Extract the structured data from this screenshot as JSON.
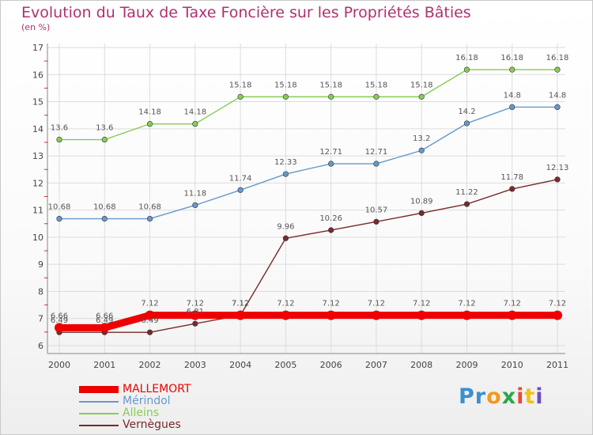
{
  "chart_data": {
    "type": "line",
    "title": "Evolution du Taux de Taxe Foncière sur les Propriétés Bâties",
    "unit": "(en %)",
    "xlabel": "",
    "ylabel": "",
    "categories": [
      "2000",
      "2001",
      "2002",
      "2003",
      "2004",
      "2005",
      "2006",
      "2007",
      "2008",
      "2009",
      "2010",
      "2011"
    ],
    "ylim": [
      6,
      17
    ],
    "yticks": [
      "6",
      "7",
      "8",
      "9",
      "10",
      "11",
      "12",
      "13",
      "14",
      "15",
      "16",
      "17"
    ],
    "grid": true,
    "legend_position": "bottom-left",
    "series": [
      {
        "name": "Vernègues",
        "color": "#7a2a2a",
        "values": [
          6.49,
          6.49,
          6.49,
          6.81,
          7.12,
          9.96,
          10.26,
          10.57,
          10.89,
          11.22,
          11.78,
          12.13
        ],
        "labels": [
          "6.49",
          "6.49",
          "6.49",
          "6.81",
          "7.12",
          "9.96",
          "10.26",
          "10.57",
          "10.89",
          "11.22",
          "11.78",
          "12.13"
        ]
      },
      {
        "name": "Alleins",
        "color": "#88cc55",
        "values": [
          13.6,
          13.6,
          14.18,
          14.18,
          15.18,
          15.18,
          15.18,
          15.18,
          15.18,
          16.18,
          16.18,
          16.18
        ],
        "labels": [
          "13.6",
          "13.6",
          "14.18",
          "14.18",
          "15.18",
          "15.18",
          "15.18",
          "15.18",
          "15.18",
          "16.18",
          "16.18",
          "16.18"
        ]
      },
      {
        "name": "Mérindol",
        "color": "#6699cc",
        "values": [
          10.68,
          10.68,
          10.68,
          11.18,
          11.74,
          12.33,
          12.71,
          12.71,
          13.2,
          14.2,
          14.8,
          14.8
        ],
        "labels": [
          "10.68",
          "10.68",
          "10.68",
          "11.18",
          "11.74",
          "12.33",
          "12.71",
          "12.71",
          "13.2",
          "14.2",
          "14.8",
          "14.8"
        ]
      },
      {
        "name": "MALLEMORT",
        "color": "#ee0000",
        "values": [
          6.66,
          6.66,
          7.12,
          7.12,
          7.12,
          7.12,
          7.12,
          7.12,
          7.12,
          7.12,
          7.12,
          7.12
        ],
        "labels": [
          "6.66",
          "6.66",
          "7.12",
          "7.12",
          "7.12",
          "7.12",
          "7.12",
          "7.12",
          "7.12",
          "7.12",
          "7.12",
          "7.12"
        ]
      }
    ]
  },
  "legend": {
    "items": [
      {
        "label": "MALLEMORT",
        "color": "#ee0000"
      },
      {
        "label": "Mérindol",
        "color": "#6699cc"
      },
      {
        "label": "Alleins",
        "color": "#88cc55"
      },
      {
        "label": "Vernègues",
        "color": "#7a2a2a"
      }
    ]
  },
  "brand": {
    "letters": [
      "P",
      "r",
      "o",
      "x",
      "i",
      "t",
      "i"
    ],
    "colors": [
      "#3a8fd0",
      "#3a8fd0",
      "#f29a1a",
      "#2aa84a",
      "#e64a3a",
      "#f2c21a",
      "#6a4fc0"
    ]
  }
}
